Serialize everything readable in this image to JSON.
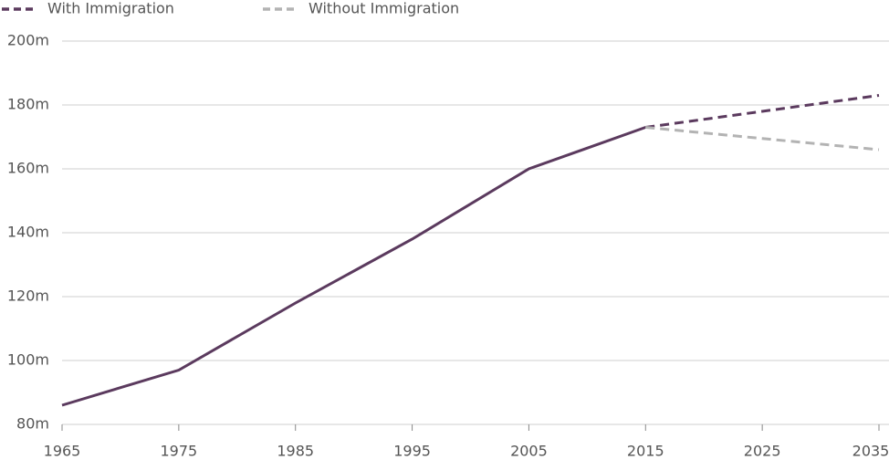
{
  "chart_data": {
    "type": "line",
    "x": [
      1965,
      1975,
      1985,
      1995,
      2005,
      2015,
      2025,
      2035
    ],
    "series": [
      {
        "name": "With Immigration",
        "color": "#5b3a5e",
        "values": [
          86,
          97,
          118,
          138,
          160,
          173,
          178,
          183
        ]
      },
      {
        "name": "Without Immigration",
        "color": "#b3b3b3",
        "values": [
          null,
          null,
          null,
          null,
          null,
          173,
          169.5,
          166
        ]
      }
    ],
    "projection_from": 2015,
    "xlim": [
      1965,
      2035
    ],
    "xticks": [
      1965,
      1975,
      1985,
      1995,
      2005,
      2015,
      2025,
      2035
    ],
    "ylim": [
      80,
      200
    ],
    "yticks": [
      {
        "value": 80,
        "label": "80m"
      },
      {
        "value": 100,
        "label": "100m"
      },
      {
        "value": 120,
        "label": "120m"
      },
      {
        "value": 140,
        "label": "140m"
      },
      {
        "value": 160,
        "label": "160m"
      },
      {
        "value": 180,
        "label": "180m"
      },
      {
        "value": 200,
        "label": "200m"
      }
    ],
    "grid": true
  }
}
